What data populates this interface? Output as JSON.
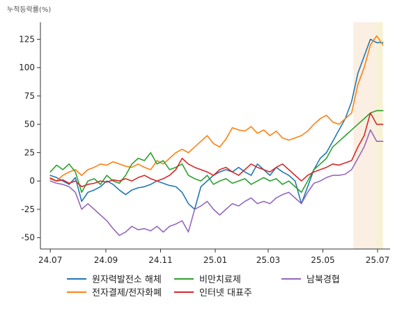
{
  "chart_data": {
    "type": "line",
    "title": "",
    "ylabel": "누적등락률(%)",
    "xlabel": "",
    "ylim": [
      -60,
      140
    ],
    "yticks": [
      -50,
      -25,
      0,
      25,
      50,
      75,
      100,
      125
    ],
    "xlim": [
      "2024-06-20",
      "2025-07-15"
    ],
    "xticks": [
      {
        "date": "2024-07-01",
        "label": "24.07"
      },
      {
        "date": "2024-09-01",
        "label": "24.09"
      },
      {
        "date": "2024-11-01",
        "label": "24.11"
      },
      {
        "date": "2025-01-01",
        "label": "25.01"
      },
      {
        "date": "2025-03-01",
        "label": "25.03"
      },
      {
        "date": "2025-05-01",
        "label": "25.05"
      },
      {
        "date": "2025-07-01",
        "label": "25.07"
      }
    ],
    "highlight_bands": [
      {
        "start": "2025-06-04",
        "end": "2025-06-28",
        "color": "#fbeee2"
      },
      {
        "start": "2025-06-28",
        "end": "2025-07-07",
        "color": "#f7f1d6"
      }
    ],
    "legend_position": "bottom",
    "grid": false,
    "series": [
      {
        "name": "원자력발전소 해체",
        "color": "#1f77b4",
        "points": [
          [
            "2024-07-01",
            5
          ],
          [
            "2024-07-08",
            3
          ],
          [
            "2024-07-15",
            0
          ],
          [
            "2024-07-22",
            -3
          ],
          [
            "2024-07-29",
            3
          ],
          [
            "2024-08-05",
            -18
          ],
          [
            "2024-08-12",
            -10
          ],
          [
            "2024-08-19",
            -8
          ],
          [
            "2024-08-26",
            -5
          ],
          [
            "2024-09-02",
            0
          ],
          [
            "2024-09-09",
            -3
          ],
          [
            "2024-09-16",
            -8
          ],
          [
            "2024-09-23",
            -12
          ],
          [
            "2024-09-30",
            -8
          ],
          [
            "2024-10-07",
            -6
          ],
          [
            "2024-10-14",
            -5
          ],
          [
            "2024-10-21",
            -3
          ],
          [
            "2024-10-28",
            0
          ],
          [
            "2024-11-04",
            -2
          ],
          [
            "2024-11-11",
            -4
          ],
          [
            "2024-11-18",
            -5
          ],
          [
            "2024-11-25",
            -10
          ],
          [
            "2024-12-02",
            -20
          ],
          [
            "2024-12-09",
            -25
          ],
          [
            "2024-12-16",
            -5
          ],
          [
            "2024-12-23",
            0
          ],
          [
            "2024-12-30",
            5
          ],
          [
            "2025-01-06",
            8
          ],
          [
            "2025-01-13",
            10
          ],
          [
            "2025-01-20",
            8
          ],
          [
            "2025-01-27",
            12
          ],
          [
            "2025-02-03",
            8
          ],
          [
            "2025-02-10",
            5
          ],
          [
            "2025-02-17",
            15
          ],
          [
            "2025-02-24",
            10
          ],
          [
            "2025-03-03",
            5
          ],
          [
            "2025-03-10",
            12
          ],
          [
            "2025-03-17",
            8
          ],
          [
            "2025-03-24",
            5
          ],
          [
            "2025-03-31",
            0
          ],
          [
            "2025-04-07",
            -20
          ],
          [
            "2025-04-14",
            -5
          ],
          [
            "2025-04-21",
            10
          ],
          [
            "2025-04-28",
            20
          ],
          [
            "2025-05-05",
            25
          ],
          [
            "2025-05-12",
            35
          ],
          [
            "2025-05-19",
            45
          ],
          [
            "2025-05-26",
            55
          ],
          [
            "2025-06-02",
            70
          ],
          [
            "2025-06-09",
            95
          ],
          [
            "2025-06-16",
            110
          ],
          [
            "2025-06-23",
            125
          ],
          [
            "2025-06-30",
            122
          ],
          [
            "2025-07-07",
            122
          ]
        ]
      },
      {
        "name": "전자결제/전자화폐",
        "color": "#ff7f0e",
        "points": [
          [
            "2024-07-01",
            3
          ],
          [
            "2024-07-08",
            0
          ],
          [
            "2024-07-15",
            5
          ],
          [
            "2024-07-22",
            8
          ],
          [
            "2024-07-29",
            10
          ],
          [
            "2024-08-05",
            5
          ],
          [
            "2024-08-12",
            10
          ],
          [
            "2024-08-19",
            12
          ],
          [
            "2024-08-26",
            15
          ],
          [
            "2024-09-02",
            14
          ],
          [
            "2024-09-09",
            17
          ],
          [
            "2024-09-16",
            15
          ],
          [
            "2024-09-23",
            13
          ],
          [
            "2024-09-30",
            12
          ],
          [
            "2024-10-07",
            15
          ],
          [
            "2024-10-14",
            12
          ],
          [
            "2024-10-21",
            10
          ],
          [
            "2024-10-28",
            18
          ],
          [
            "2024-11-04",
            15
          ],
          [
            "2024-11-11",
            20
          ],
          [
            "2024-11-18",
            25
          ],
          [
            "2024-11-25",
            28
          ],
          [
            "2024-12-02",
            25
          ],
          [
            "2024-12-09",
            30
          ],
          [
            "2024-12-16",
            35
          ],
          [
            "2024-12-23",
            40
          ],
          [
            "2024-12-30",
            33
          ],
          [
            "2025-01-06",
            30
          ],
          [
            "2025-01-13",
            37
          ],
          [
            "2025-01-20",
            47
          ],
          [
            "2025-01-27",
            45
          ],
          [
            "2025-02-03",
            44
          ],
          [
            "2025-02-10",
            48
          ],
          [
            "2025-02-17",
            42
          ],
          [
            "2025-02-24",
            45
          ],
          [
            "2025-03-03",
            40
          ],
          [
            "2025-03-10",
            44
          ],
          [
            "2025-03-17",
            38
          ],
          [
            "2025-03-24",
            36
          ],
          [
            "2025-03-31",
            38
          ],
          [
            "2025-04-07",
            40
          ],
          [
            "2025-04-14",
            44
          ],
          [
            "2025-04-21",
            50
          ],
          [
            "2025-04-28",
            55
          ],
          [
            "2025-05-05",
            58
          ],
          [
            "2025-05-12",
            52
          ],
          [
            "2025-05-19",
            50
          ],
          [
            "2025-05-26",
            55
          ],
          [
            "2025-06-02",
            60
          ],
          [
            "2025-06-09",
            85
          ],
          [
            "2025-06-16",
            100
          ],
          [
            "2025-06-23",
            120
          ],
          [
            "2025-06-30",
            128
          ],
          [
            "2025-07-07",
            120
          ]
        ]
      },
      {
        "name": "비만치료제",
        "color": "#2ca02c",
        "points": [
          [
            "2024-07-01",
            8
          ],
          [
            "2024-07-08",
            14
          ],
          [
            "2024-07-15",
            10
          ],
          [
            "2024-07-22",
            15
          ],
          [
            "2024-07-29",
            8
          ],
          [
            "2024-08-05",
            -10
          ],
          [
            "2024-08-12",
            0
          ],
          [
            "2024-08-19",
            2
          ],
          [
            "2024-08-26",
            -3
          ],
          [
            "2024-09-02",
            5
          ],
          [
            "2024-09-09",
            0
          ],
          [
            "2024-09-16",
            -2
          ],
          [
            "2024-09-23",
            5
          ],
          [
            "2024-09-30",
            15
          ],
          [
            "2024-10-07",
            20
          ],
          [
            "2024-10-14",
            18
          ],
          [
            "2024-10-21",
            25
          ],
          [
            "2024-10-28",
            15
          ],
          [
            "2024-11-04",
            18
          ],
          [
            "2024-11-11",
            10
          ],
          [
            "2024-11-18",
            12
          ],
          [
            "2024-11-25",
            15
          ],
          [
            "2024-12-02",
            5
          ],
          [
            "2024-12-09",
            2
          ],
          [
            "2024-12-16",
            0
          ],
          [
            "2024-12-23",
            5
          ],
          [
            "2024-12-30",
            -3
          ],
          [
            "2025-01-06",
            0
          ],
          [
            "2025-01-13",
            2
          ],
          [
            "2025-01-20",
            -2
          ],
          [
            "2025-01-27",
            0
          ],
          [
            "2025-02-03",
            2
          ],
          [
            "2025-02-10",
            -3
          ],
          [
            "2025-02-17",
            0
          ],
          [
            "2025-02-24",
            3
          ],
          [
            "2025-03-03",
            0
          ],
          [
            "2025-03-10",
            2
          ],
          [
            "2025-03-17",
            -3
          ],
          [
            "2025-03-24",
            0
          ],
          [
            "2025-03-31",
            -5
          ],
          [
            "2025-04-07",
            -10
          ],
          [
            "2025-04-14",
            0
          ],
          [
            "2025-04-21",
            10
          ],
          [
            "2025-04-28",
            15
          ],
          [
            "2025-05-05",
            20
          ],
          [
            "2025-05-12",
            30
          ],
          [
            "2025-05-19",
            35
          ],
          [
            "2025-05-26",
            40
          ],
          [
            "2025-06-02",
            45
          ],
          [
            "2025-06-09",
            50
          ],
          [
            "2025-06-16",
            55
          ],
          [
            "2025-06-23",
            60
          ],
          [
            "2025-06-30",
            62
          ],
          [
            "2025-07-07",
            62
          ]
        ]
      },
      {
        "name": "인터넷 대표주",
        "color": "#d62728",
        "points": [
          [
            "2024-07-01",
            2
          ],
          [
            "2024-07-08",
            0
          ],
          [
            "2024-07-15",
            1
          ],
          [
            "2024-07-22",
            -2
          ],
          [
            "2024-07-29",
            0
          ],
          [
            "2024-08-05",
            -5
          ],
          [
            "2024-08-12",
            -3
          ],
          [
            "2024-08-19",
            -2
          ],
          [
            "2024-08-26",
            0
          ],
          [
            "2024-09-02",
            -1
          ],
          [
            "2024-09-09",
            1
          ],
          [
            "2024-09-16",
            0
          ],
          [
            "2024-09-23",
            2
          ],
          [
            "2024-09-30",
            0
          ],
          [
            "2024-10-07",
            3
          ],
          [
            "2024-10-14",
            5
          ],
          [
            "2024-10-21",
            2
          ],
          [
            "2024-10-28",
            0
          ],
          [
            "2024-11-04",
            2
          ],
          [
            "2024-11-11",
            5
          ],
          [
            "2024-11-18",
            10
          ],
          [
            "2024-11-25",
            20
          ],
          [
            "2024-12-02",
            15
          ],
          [
            "2024-12-09",
            12
          ],
          [
            "2024-12-16",
            10
          ],
          [
            "2024-12-23",
            8
          ],
          [
            "2024-12-30",
            5
          ],
          [
            "2025-01-06",
            10
          ],
          [
            "2025-01-13",
            12
          ],
          [
            "2025-01-20",
            8
          ],
          [
            "2025-01-27",
            5
          ],
          [
            "2025-02-03",
            10
          ],
          [
            "2025-02-10",
            15
          ],
          [
            "2025-02-17",
            12
          ],
          [
            "2025-02-24",
            10
          ],
          [
            "2025-03-03",
            8
          ],
          [
            "2025-03-10",
            12
          ],
          [
            "2025-03-17",
            15
          ],
          [
            "2025-03-24",
            10
          ],
          [
            "2025-03-31",
            5
          ],
          [
            "2025-04-07",
            0
          ],
          [
            "2025-04-14",
            5
          ],
          [
            "2025-04-21",
            8
          ],
          [
            "2025-04-28",
            10
          ],
          [
            "2025-05-05",
            12
          ],
          [
            "2025-05-12",
            15
          ],
          [
            "2025-05-19",
            14
          ],
          [
            "2025-05-26",
            16
          ],
          [
            "2025-06-02",
            18
          ],
          [
            "2025-06-09",
            30
          ],
          [
            "2025-06-16",
            40
          ],
          [
            "2025-06-23",
            60
          ],
          [
            "2025-06-30",
            50
          ],
          [
            "2025-07-07",
            50
          ]
        ]
      },
      {
        "name": "남북경협",
        "color": "#9467bd",
        "points": [
          [
            "2024-07-01",
            0
          ],
          [
            "2024-07-08",
            -2
          ],
          [
            "2024-07-15",
            -3
          ],
          [
            "2024-07-22",
            -5
          ],
          [
            "2024-07-29",
            -10
          ],
          [
            "2024-08-05",
            -25
          ],
          [
            "2024-08-12",
            -20
          ],
          [
            "2024-08-19",
            -25
          ],
          [
            "2024-08-26",
            -30
          ],
          [
            "2024-09-02",
            -35
          ],
          [
            "2024-09-09",
            -42
          ],
          [
            "2024-09-16",
            -48
          ],
          [
            "2024-09-23",
            -45
          ],
          [
            "2024-09-30",
            -40
          ],
          [
            "2024-10-07",
            -43
          ],
          [
            "2024-10-14",
            -42
          ],
          [
            "2024-10-21",
            -44
          ],
          [
            "2024-10-28",
            -40
          ],
          [
            "2024-11-04",
            -45
          ],
          [
            "2024-11-11",
            -40
          ],
          [
            "2024-11-18",
            -38
          ],
          [
            "2024-11-25",
            -35
          ],
          [
            "2024-12-02",
            -45
          ],
          [
            "2024-12-09",
            -25
          ],
          [
            "2024-12-16",
            -22
          ],
          [
            "2024-12-23",
            -18
          ],
          [
            "2024-12-30",
            -25
          ],
          [
            "2025-01-06",
            -30
          ],
          [
            "2025-01-13",
            -25
          ],
          [
            "2025-01-20",
            -20
          ],
          [
            "2025-01-27",
            -22
          ],
          [
            "2025-02-03",
            -18
          ],
          [
            "2025-02-10",
            -15
          ],
          [
            "2025-02-17",
            -20
          ],
          [
            "2025-02-24",
            -18
          ],
          [
            "2025-03-03",
            -20
          ],
          [
            "2025-03-10",
            -15
          ],
          [
            "2025-03-17",
            -12
          ],
          [
            "2025-03-24",
            -10
          ],
          [
            "2025-03-31",
            -15
          ],
          [
            "2025-04-07",
            -20
          ],
          [
            "2025-04-14",
            -10
          ],
          [
            "2025-04-21",
            -2
          ],
          [
            "2025-04-28",
            0
          ],
          [
            "2025-05-05",
            3
          ],
          [
            "2025-05-12",
            5
          ],
          [
            "2025-05-19",
            5
          ],
          [
            "2025-05-26",
            6
          ],
          [
            "2025-06-02",
            10
          ],
          [
            "2025-06-09",
            20
          ],
          [
            "2025-06-16",
            30
          ],
          [
            "2025-06-23",
            45
          ],
          [
            "2025-06-30",
            35
          ],
          [
            "2025-07-07",
            35
          ]
        ]
      }
    ]
  }
}
